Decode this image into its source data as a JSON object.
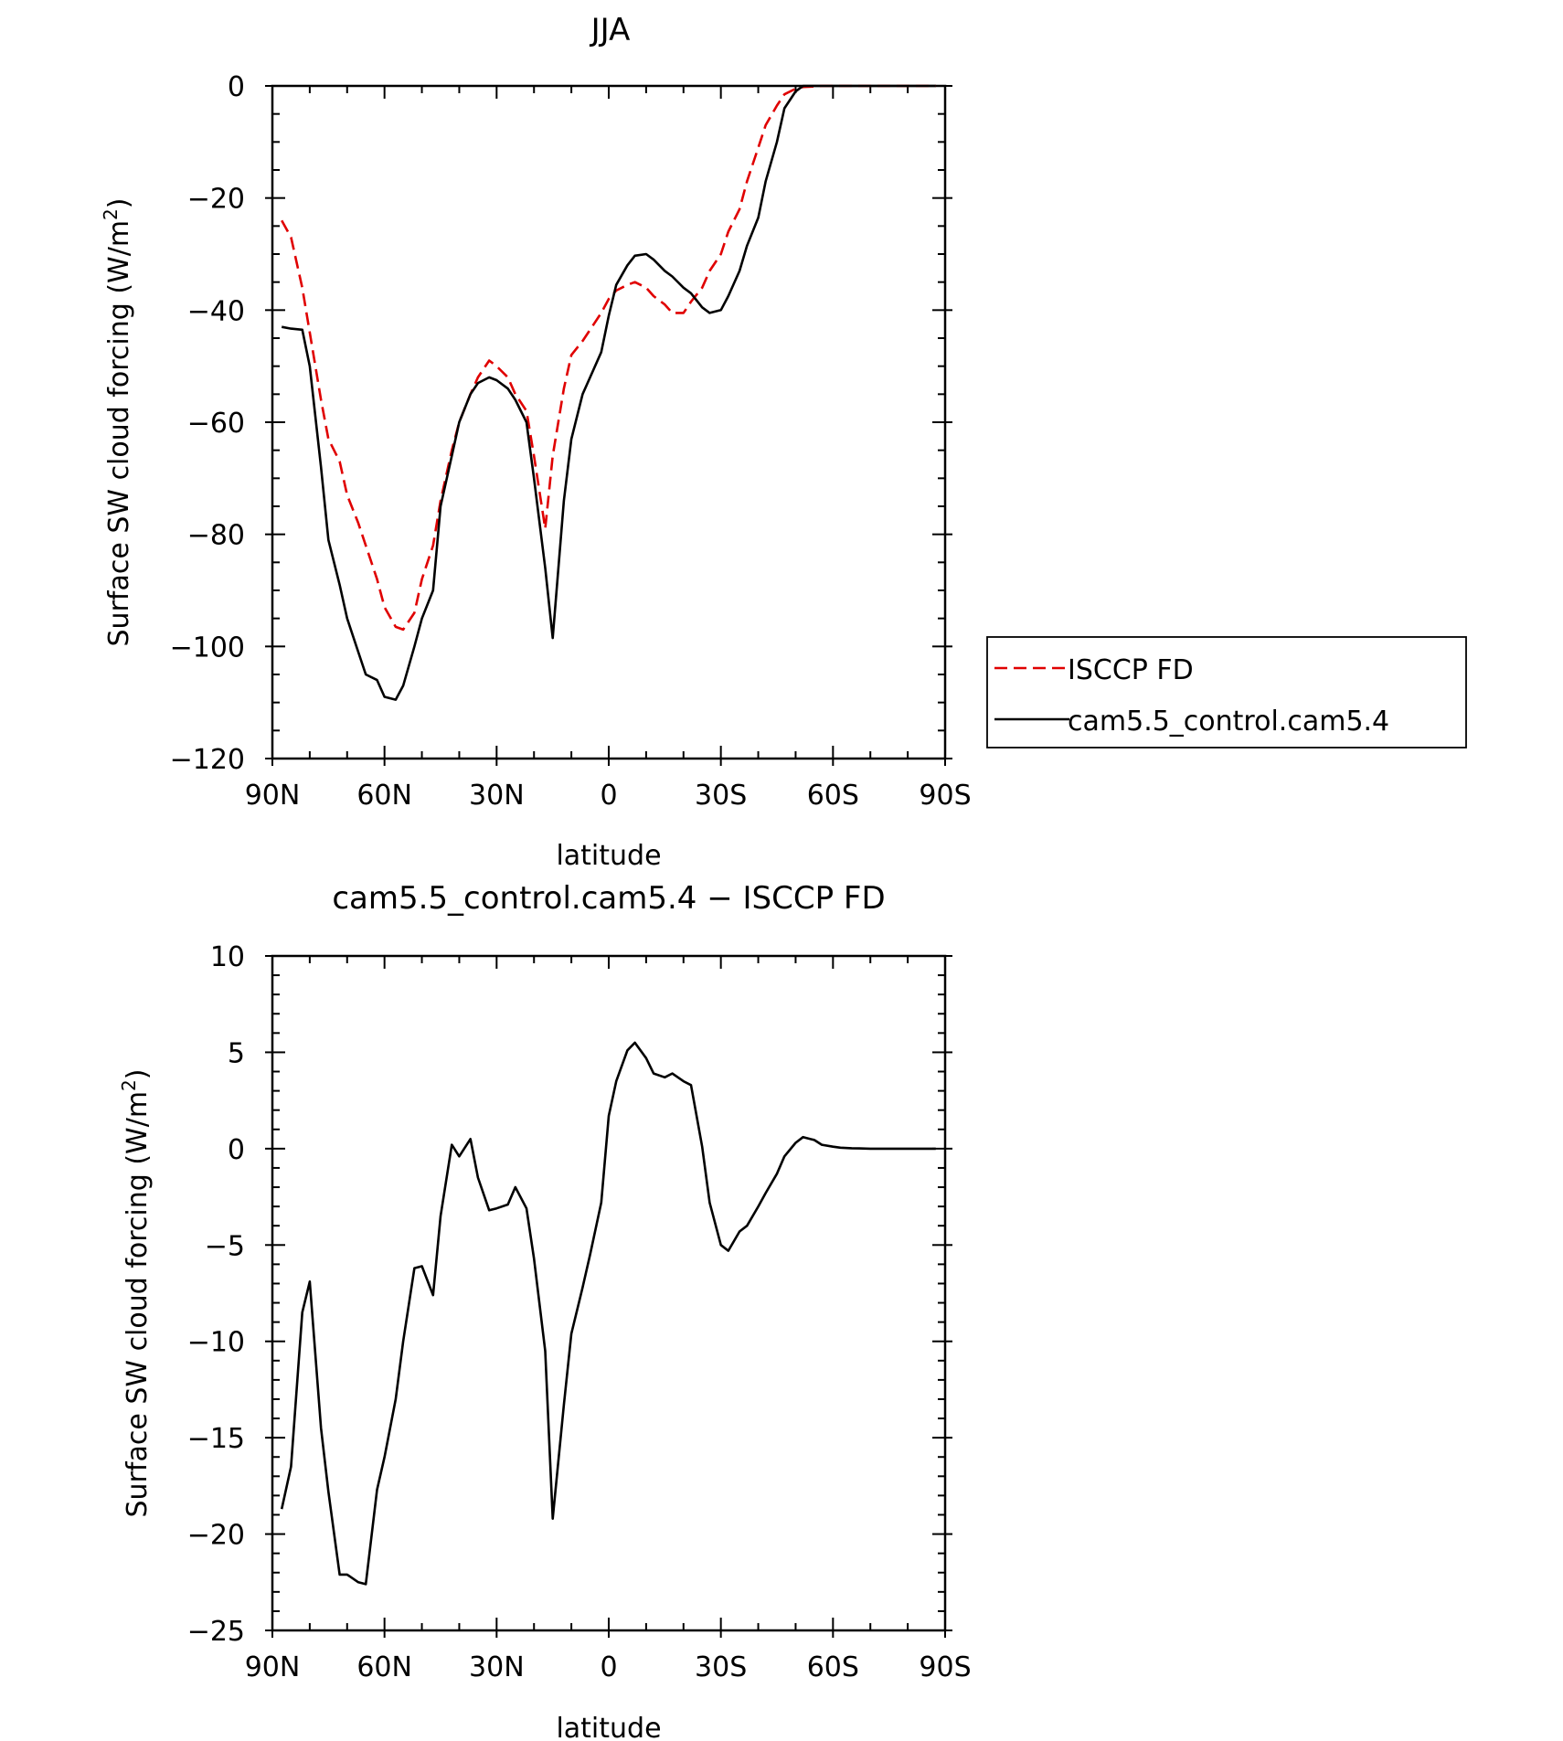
{
  "chart_data": [
    {
      "type": "line",
      "title": "JJA",
      "xlabel": "latitude",
      "ylabel": "Surface SW cloud forcing (W/m²)",
      "ylabel_main": "Surface SW cloud forcing (W/m",
      "ylabel_sup": "2",
      "ylabel_close": ")",
      "xlim": [
        90,
        -90
      ],
      "ylim": [
        -120,
        0
      ],
      "x_ticks": [
        90,
        60,
        30,
        0,
        -30,
        -60,
        -90
      ],
      "x_tick_labels": [
        "90N",
        "60N",
        "30N",
        "0",
        "30S",
        "60S",
        "90S"
      ],
      "y_ticks": [
        0,
        -20,
        -40,
        -60,
        -80,
        -100,
        -120
      ],
      "y_tick_labels": [
        "0",
        "−20",
        "−40",
        "−60",
        "−80",
        "−100",
        "−120"
      ],
      "legend": {
        "placement": "right",
        "entries": [
          "ISCCP FD",
          "cam5.5_control.cam5.4"
        ]
      },
      "series": [
        {
          "name": "ISCCP FD",
          "color": "#e00000",
          "style": "dashed",
          "x": [
            87.5,
            85,
            82,
            80,
            77,
            75,
            72,
            70,
            67,
            65,
            62,
            60,
            57,
            55,
            52,
            50,
            47,
            45,
            42,
            40,
            37,
            35,
            32,
            30,
            27,
            25,
            22,
            20,
            17,
            15,
            12,
            10,
            7,
            5,
            2,
            0,
            -2,
            -5,
            -7,
            -10,
            -12,
            -15,
            -17,
            -20,
            -22,
            -25,
            -27,
            -30,
            -32,
            -35,
            -37,
            -40,
            -42,
            -45,
            -47,
            -50,
            -52,
            -55,
            -57,
            -60,
            -62,
            -65,
            -67,
            -70,
            -72,
            -75,
            -77,
            -80,
            -82,
            -85,
            -87.5
          ],
          "y": [
            -24,
            -27,
            -36,
            -44,
            -56,
            -63,
            -67,
            -73,
            -78,
            -82,
            -88,
            -93,
            -96.5,
            -97,
            -94,
            -88,
            -82,
            -74,
            -65,
            -60,
            -55,
            -52,
            -49,
            -50,
            -52,
            -55,
            -58,
            -66,
            -79,
            -66,
            -54,
            -48,
            -45.5,
            -43.5,
            -40.5,
            -38,
            -36.5,
            -35.5,
            -35,
            -36,
            -37.5,
            -39,
            -40.5,
            -40.5,
            -38.5,
            -36,
            -33,
            -30,
            -26,
            -22,
            -17,
            -11,
            -7,
            -3.5,
            -1.5,
            -0.5,
            -0.2,
            -0.1,
            0,
            0,
            0,
            0,
            0,
            0,
            0,
            0,
            0,
            0,
            0,
            0,
            0
          ]
        },
        {
          "name": "cam5.5_control.cam5.4",
          "color": "#000000",
          "style": "solid",
          "x": [
            87.5,
            85,
            82,
            80,
            77,
            75,
            72,
            70,
            67,
            65,
            62,
            60,
            57,
            55,
            52,
            50,
            47,
            45,
            42,
            40,
            37,
            35,
            32,
            30,
            27,
            25,
            22,
            20,
            17,
            15,
            12,
            10,
            7,
            5,
            2,
            0,
            -2,
            -5,
            -7,
            -10,
            -12,
            -15,
            -17,
            -20,
            -22,
            -25,
            -27,
            -30,
            -32,
            -35,
            -37,
            -40,
            -42,
            -45,
            -47,
            -50,
            -52,
            -55,
            -57,
            -60,
            -62,
            -65,
            -67,
            -70,
            -72,
            -75,
            -77,
            -80,
            -82,
            -85,
            -87.5
          ],
          "y": [
            -43,
            -43.3,
            -43.5,
            -50,
            -68,
            -81,
            -89,
            -95,
            -101,
            -105,
            -106,
            -109,
            -109.5,
            -107,
            -100,
            -95,
            -90,
            -75,
            -66,
            -60,
            -55,
            -53,
            -52,
            -52.5,
            -54,
            -56,
            -60,
            -70,
            -86,
            -98.5,
            -74,
            -63,
            -55,
            -52,
            -47.5,
            -41,
            -35.5,
            -32,
            -30.3,
            -30,
            -31,
            -33,
            -34,
            -36,
            -37,
            -39.5,
            -40.5,
            -40,
            -37.5,
            -33,
            -28.5,
            -23.5,
            -17,
            -10,
            -4,
            -1,
            0,
            0,
            0,
            0,
            0,
            0,
            0,
            0,
            0,
            0,
            0,
            0,
            0,
            0,
            0
          ]
        }
      ]
    },
    {
      "type": "line",
      "title": "cam5.5_control.cam5.4 − ISCCP FD",
      "xlabel": "latitude",
      "ylabel": "Surface SW cloud forcing (W/m²)",
      "ylabel_main": "Surface SW cloud forcing (W/m",
      "ylabel_sup": "2",
      "ylabel_close": ")",
      "xlim": [
        90,
        -90
      ],
      "ylim": [
        -25,
        10
      ],
      "x_ticks": [
        90,
        60,
        30,
        0,
        -30,
        -60,
        -90
      ],
      "x_tick_labels": [
        "90N",
        "60N",
        "30N",
        "0",
        "30S",
        "60S",
        "90S"
      ],
      "y_ticks": [
        10,
        5,
        0,
        -5,
        -10,
        -15,
        -20,
        -25
      ],
      "y_tick_labels": [
        "10",
        "5",
        "0",
        "−5",
        "−10",
        "−15",
        "−20",
        "−25"
      ],
      "series": [
        {
          "color": "#000000",
          "style": "solid",
          "x": [
            87.5,
            85,
            82,
            80,
            77,
            75,
            72,
            70,
            67,
            65,
            62,
            60,
            57,
            55,
            52,
            50,
            47,
            45,
            42,
            40,
            37,
            35,
            32,
            30,
            27,
            25,
            22,
            20,
            17,
            15,
            12,
            10,
            7,
            5,
            2,
            0,
            -2,
            -5,
            -7,
            -10,
            -12,
            -15,
            -17,
            -20,
            -22,
            -25,
            -27,
            -30,
            -32,
            -35,
            -37,
            -40,
            -42,
            -45,
            -47,
            -50,
            -52,
            -55,
            -57,
            -60,
            -62,
            -65,
            -67,
            -70,
            -72,
            -75,
            -77,
            -80,
            -82,
            -85,
            -87.5
          ],
          "y": [
            -18.7,
            -16.5,
            -8.5,
            -6.9,
            -14.5,
            -17.8,
            -22.1,
            -22.1,
            -22.5,
            -22.6,
            -17.7,
            -16,
            -13,
            -10,
            -6.2,
            -6.1,
            -7.6,
            -3.5,
            0.2,
            -0.4,
            0.5,
            -1.5,
            -3.2,
            -3.1,
            -2.9,
            -2,
            -3.1,
            -5.7,
            -10.5,
            -19.2,
            -13.3,
            -9.6,
            -7.2,
            -5.5,
            -2.8,
            1.7,
            3.5,
            5.1,
            5.5,
            4.7,
            3.9,
            3.7,
            3.9,
            3.5,
            3.3,
            0.1,
            -2.8,
            -5.0,
            -5.3,
            -4.3,
            -4.0,
            -3.0,
            -2.3,
            -1.3,
            -0.4,
            0.3,
            0.6,
            0.45,
            0.2,
            0.1,
            0.05,
            0.02,
            0.01,
            0,
            0,
            0,
            0,
            0,
            0,
            0,
            0
          ]
        }
      ]
    }
  ]
}
